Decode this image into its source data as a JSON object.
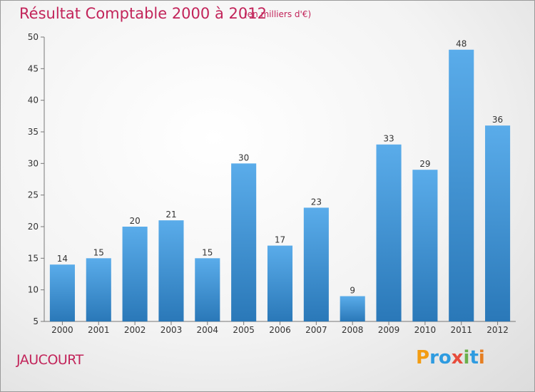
{
  "chart_data": {
    "type": "bar",
    "title": "Résultat Comptable 2000 à 2012",
    "subtitle": "(en milliers d'€)",
    "categories": [
      "2000",
      "2001",
      "2002",
      "2003",
      "2004",
      "2005",
      "2006",
      "2007",
      "2008",
      "2009",
      "2010",
      "2011",
      "2012"
    ],
    "values": [
      14,
      15,
      20,
      21,
      15,
      30,
      17,
      23,
      9,
      33,
      29,
      48,
      36
    ],
    "ylim": [
      5,
      50
    ],
    "yticks": [
      5,
      10,
      15,
      20,
      25,
      30,
      35,
      40,
      45,
      50
    ],
    "xlabel": "",
    "ylabel": "",
    "grid": false,
    "bar_color_top": "#5aacea",
    "bar_color_bottom": "#2a78b8"
  },
  "place": "JAUCOURT",
  "brand": {
    "letters": [
      "P",
      "r",
      "o",
      "x",
      "i",
      "t",
      "i"
    ],
    "colors": [
      "#f39c12",
      "#2e9be0",
      "#2e9be0",
      "#e74c3c",
      "#6ab04c",
      "#2e9be0",
      "#e67e22"
    ]
  }
}
